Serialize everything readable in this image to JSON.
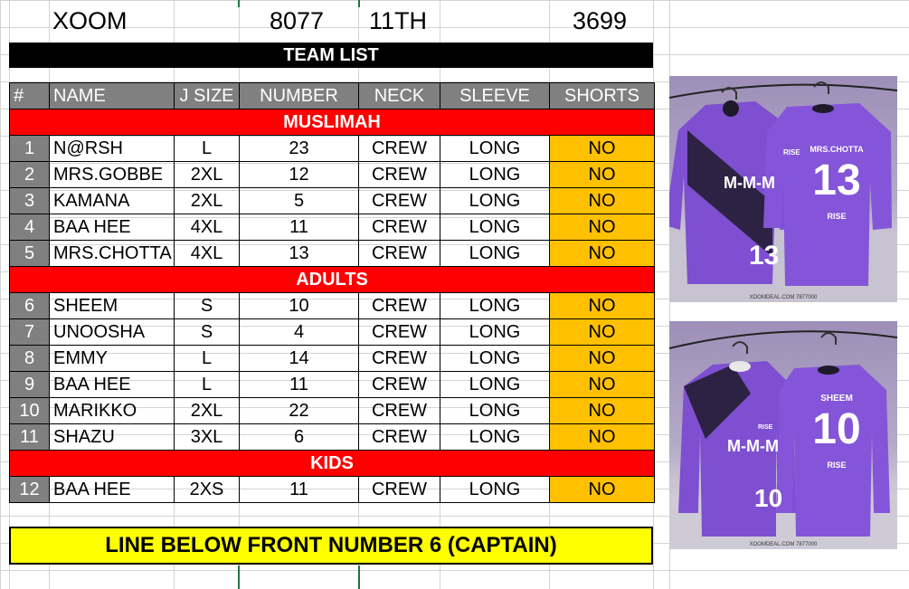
{
  "header": {
    "brand": "XOOM",
    "order_no": "8077",
    "round": "11TH",
    "ref": "3699"
  },
  "team_list_label": "TEAM LIST",
  "columns": [
    "#",
    "NAME",
    "J SIZE",
    "NUMBER",
    "NECK",
    "SLEEVE",
    "SHORTS"
  ],
  "sections": [
    {
      "title": "MUSLIMAH",
      "rows": [
        {
          "n": "1",
          "name": "N@RSH",
          "size": "L",
          "number": "23",
          "neck": "CREW",
          "sleeve": "LONG",
          "shorts": "NO"
        },
        {
          "n": "2",
          "name": "MRS.GOBBE",
          "size": "2XL",
          "number": "12",
          "neck": "CREW",
          "sleeve": "LONG",
          "shorts": "NO"
        },
        {
          "n": "3",
          "name": "KAMANA",
          "size": "2XL",
          "number": "5",
          "neck": "CREW",
          "sleeve": "LONG",
          "shorts": "NO"
        },
        {
          "n": "4",
          "name": "BAA HEE",
          "size": "4XL",
          "number": "11",
          "neck": "CREW",
          "sleeve": "LONG",
          "shorts": "NO"
        },
        {
          "n": "5",
          "name": "MRS.CHOTTA",
          "size": "4XL",
          "number": "13",
          "neck": "CREW",
          "sleeve": "LONG",
          "shorts": "NO"
        }
      ]
    },
    {
      "title": "ADULTS",
      "rows": [
        {
          "n": "6",
          "name": "SHEEM",
          "size": "S",
          "number": "10",
          "neck": "CREW",
          "sleeve": "LONG",
          "shorts": "NO"
        },
        {
          "n": "7",
          "name": "UNOOSHA",
          "size": "S",
          "number": "4",
          "neck": "CREW",
          "sleeve": "LONG",
          "shorts": "NO"
        },
        {
          "n": "8",
          "name": "EMMY",
          "size": "L",
          "number": "14",
          "neck": "CREW",
          "sleeve": "LONG",
          "shorts": "NO"
        },
        {
          "n": "9",
          "name": "BAA HEE",
          "size": "L",
          "number": "11",
          "neck": "CREW",
          "sleeve": "LONG",
          "shorts": "NO"
        },
        {
          "n": "10",
          "name": "MARIKKO",
          "size": "2XL",
          "number": "22",
          "neck": "CREW",
          "sleeve": "LONG",
          "shorts": "NO"
        },
        {
          "n": "11",
          "name": "SHAZU",
          "size": "3XL",
          "number": "6",
          "neck": "CREW",
          "sleeve": "LONG",
          "shorts": "NO"
        }
      ]
    },
    {
      "title": "KIDS",
      "rows": [
        {
          "n": "12",
          "name": "BAA HEE",
          "size": "2XS",
          "number": "11",
          "neck": "CREW",
          "sleeve": "LONG",
          "shorts": "NO"
        }
      ]
    }
  ],
  "note": "LINE BELOW FRONT NUMBER 6 (CAPTAIN)",
  "mockups": [
    {
      "front_text": "M-M-M",
      "front_number": "13",
      "back_name": "MRS.CHOTTA",
      "back_number": "13",
      "back_label": "RISE",
      "chest_badge": "RISE",
      "footer": "XOOMDEAL.COM 7877000"
    },
    {
      "front_text": "M-M-M",
      "front_number": "10",
      "back_name": "SHEEM",
      "back_number": "10",
      "back_label": "RISE",
      "chest_badge": "RISE",
      "footer": "XOOMDEAL.COM 7877000"
    }
  ],
  "colors": {
    "jersey_purple": "#7e4fd0",
    "jersey_dark": "#1e1a2a",
    "section_red": "#ff0000",
    "shorts_orange": "#ffc000",
    "note_yellow": "#ffff00",
    "header_gray": "#808080"
  }
}
